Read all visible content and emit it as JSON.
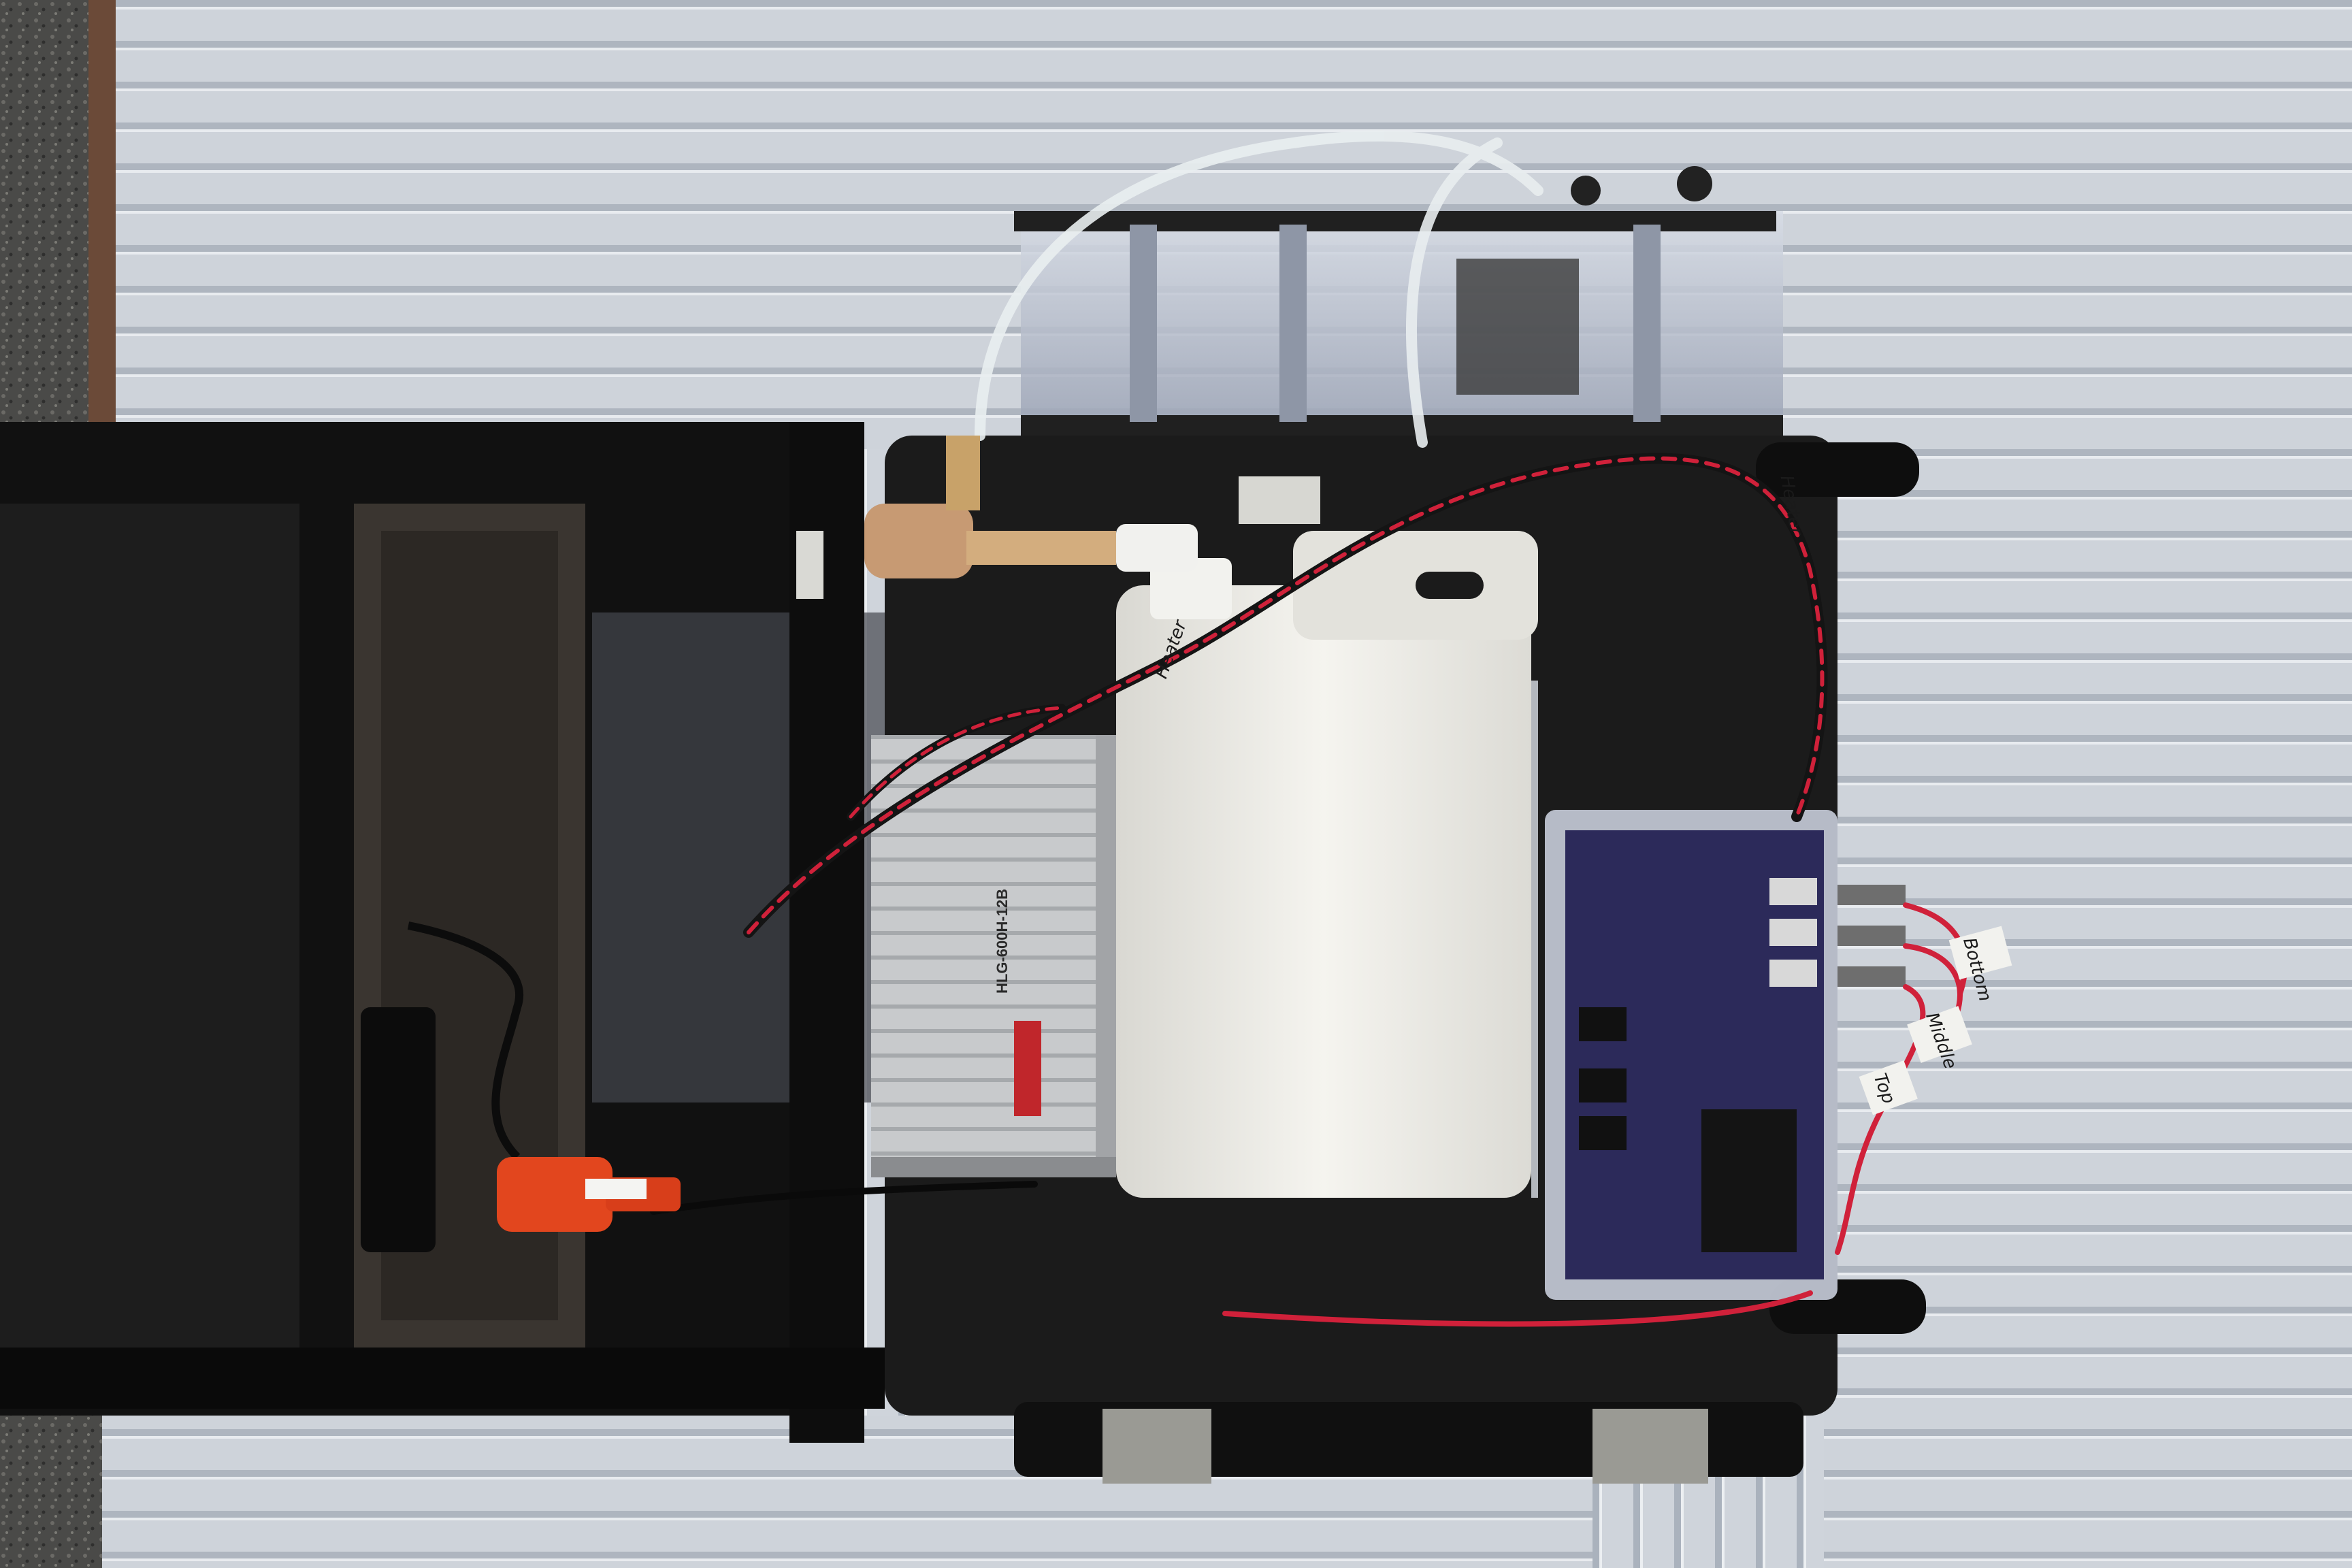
{
  "scene": {
    "subject": "water-sampling-apparatus",
    "colors": {
      "siding": "#c9ced6",
      "siding_shadow": "#9ea6b1",
      "cart_black": "#121212",
      "case_black": "#1b1b1b",
      "jug_white": "#ecebe6",
      "power_supply": "#c9cbcd",
      "enclosure_clear": "#bfc4d4",
      "pcb_blue": "#2c2a5a",
      "wire_red": "#d0213a",
      "pump_bronze": "#c79a73",
      "plug_orange": "#e2461e"
    }
  },
  "labels": {
    "power_supply_model": "HLG-600H-12B",
    "tag_bottom": "Bottom",
    "tag_middle": "Middle",
    "tag_top": "Top",
    "tag_heater_1": "Heater",
    "tag_heater_2": "Heater"
  }
}
